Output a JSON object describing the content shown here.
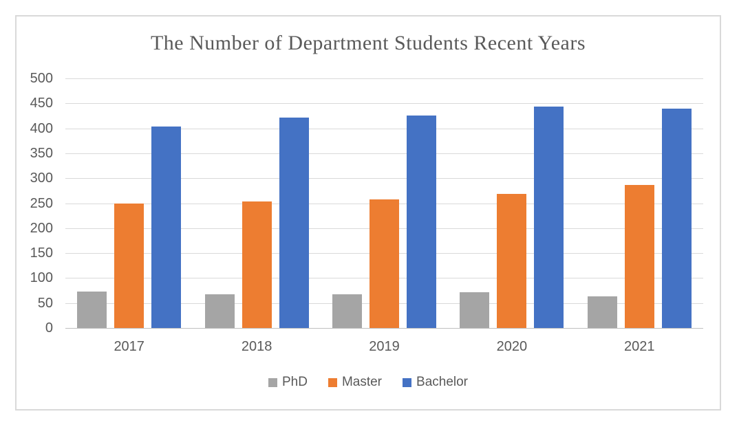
{
  "chart_data": {
    "type": "bar",
    "title": "The Number of Department Students Recent Years",
    "categories": [
      "2017",
      "2018",
      "2019",
      "2020",
      "2021"
    ],
    "series": [
      {
        "name": "PhD",
        "color": "#a5a5a5",
        "values": [
          73,
          67,
          67,
          72,
          64
        ]
      },
      {
        "name": "Master",
        "color": "#ed7d31",
        "values": [
          250,
          254,
          258,
          268,
          287
        ]
      },
      {
        "name": "Bachelor",
        "color": "#4472c4",
        "values": [
          403,
          422,
          425,
          443,
          440
        ]
      }
    ],
    "xlabel": "",
    "ylabel": "",
    "ylim": [
      0,
      500
    ],
    "ytick_step": 50,
    "yticks": [
      "0",
      "50",
      "100",
      "150",
      "200",
      "250",
      "300",
      "350",
      "400",
      "450",
      "500"
    ],
    "grid": true,
    "legend_position": "bottom",
    "legend_entries": [
      "PhD",
      "Master",
      "Bachelor"
    ]
  },
  "ui_colors": {
    "background": "#ffffff",
    "frame_border": "#d9d9d9",
    "gridline": "#d9d9d9",
    "axis_line": "#bfbfbf",
    "text": "#595959"
  }
}
